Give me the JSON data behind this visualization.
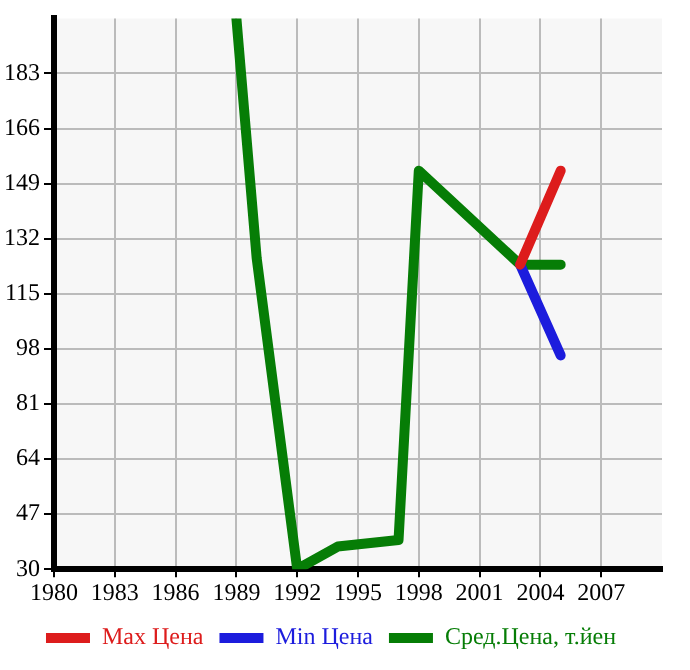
{
  "chart_data": {
    "type": "line",
    "xlim": [
      1980,
      2010
    ],
    "xticks": [
      1980,
      1983,
      1986,
      1989,
      1992,
      1995,
      1998,
      2001,
      2004,
      2007
    ],
    "ylim": [
      30,
      200
    ],
    "yticks": [
      30,
      47,
      64,
      81,
      98,
      115,
      132,
      149,
      166,
      183
    ],
    "grid": true,
    "legend": "bottom",
    "marker": "none",
    "line_style": "solid",
    "series": [
      {
        "name": "Max Цена",
        "color": "#dd1c1c",
        "x": [
          2003,
          2005
        ],
        "values": [
          124,
          153
        ]
      },
      {
        "name": "Min Цена",
        "color": "#1c1cdd",
        "x": [
          2003,
          2005
        ],
        "values": [
          124,
          96
        ]
      },
      {
        "name": "Сред.Цена, т.йен",
        "color": "#067d06",
        "x": [
          1989,
          1990,
          1992,
          1994,
          1997,
          1998,
          2003,
          2005
        ],
        "values": [
          200,
          126,
          30,
          37,
          39,
          153,
          124,
          124
        ]
      }
    ]
  }
}
